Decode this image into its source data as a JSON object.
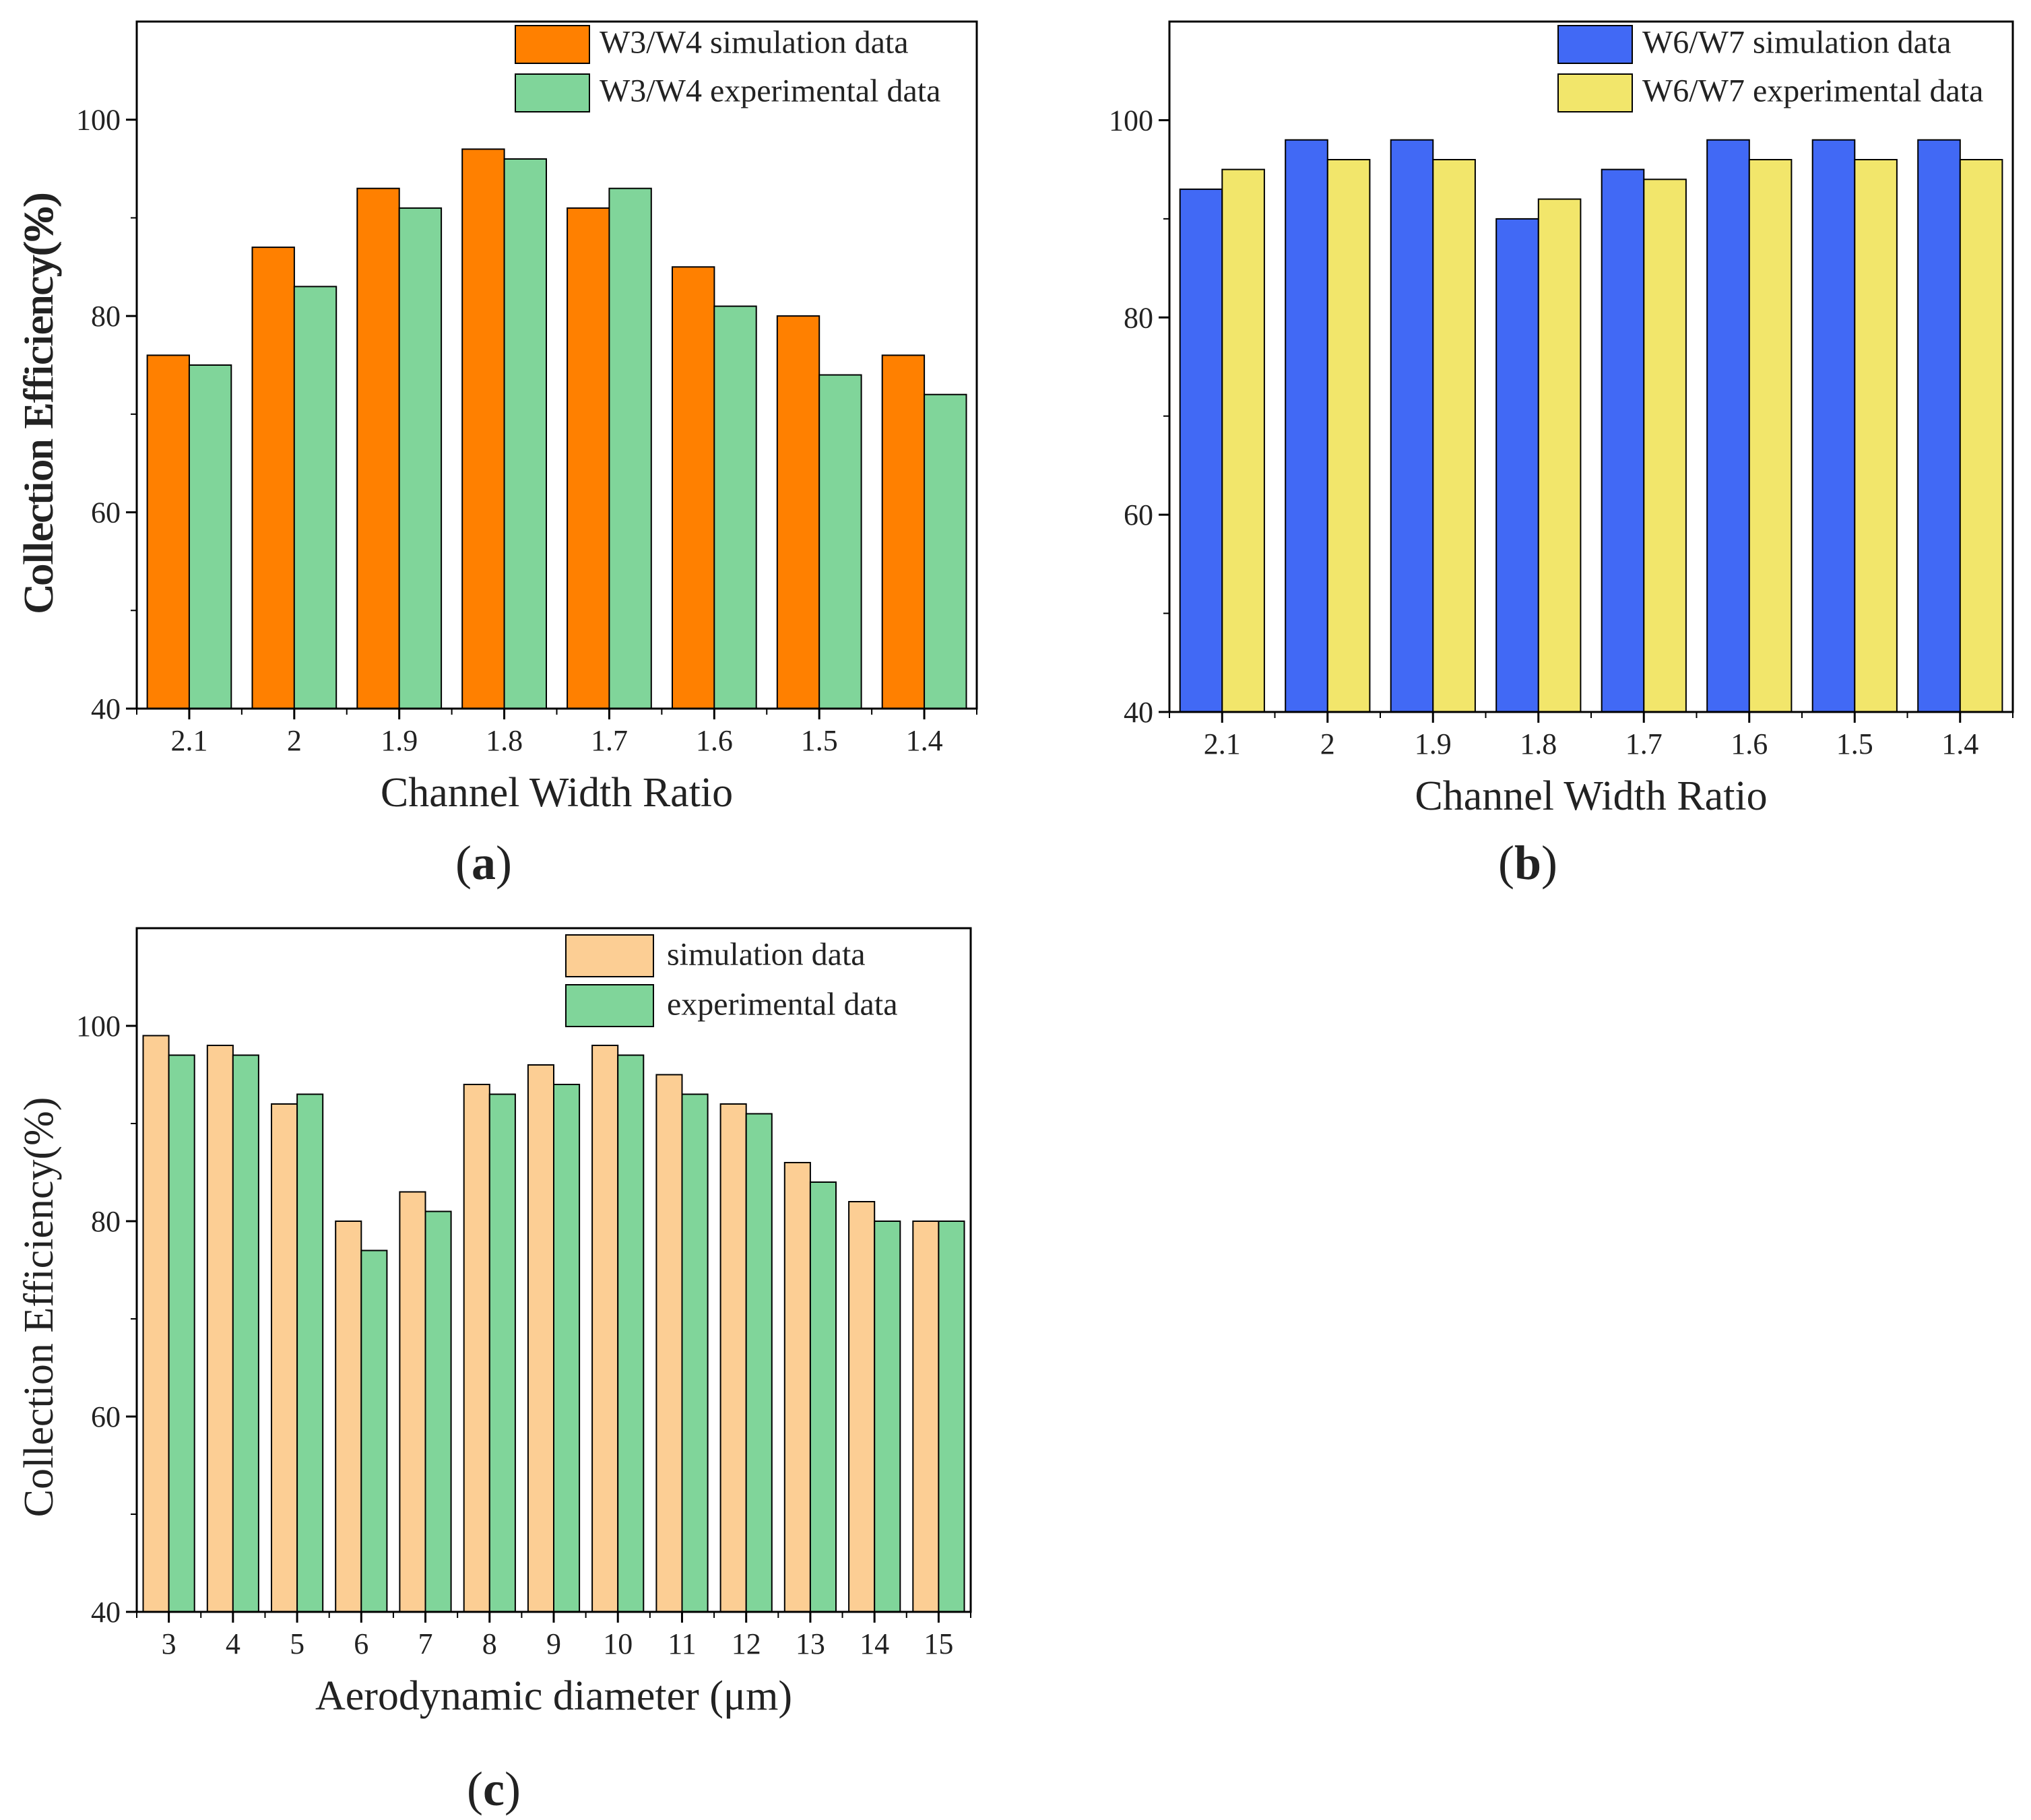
{
  "chart_data": [
    {
      "panel": "a",
      "type": "bar",
      "caption": "(a)",
      "caption_letter": "a",
      "xlabel": "Channel Width Ratio",
      "ylabel": "Collection Efficiency(%)",
      "ylim": [
        40,
        110
      ],
      "yticks": [
        40,
        60,
        80,
        100
      ],
      "categories": [
        "2.1",
        "2",
        "1.9",
        "1.8",
        "1.7",
        "1.6",
        "1.5",
        "1.4"
      ],
      "legend_position": "top-right",
      "series": [
        {
          "name": "W3/W4 simulation data",
          "color": "#ff8000",
          "values": [
            76,
            87,
            93,
            97,
            91,
            85,
            80,
            76
          ]
        },
        {
          "name": "W3/W4 experimental data",
          "color": "#80d59a",
          "values": [
            75,
            83,
            91,
            96,
            93,
            81,
            74,
            72
          ]
        }
      ]
    },
    {
      "panel": "b",
      "type": "bar",
      "caption": "(b)",
      "caption_letter": "b",
      "xlabel": "Channel Width Ratio",
      "ylabel": "Collection Efficiency(%)",
      "ylim": [
        40,
        110
      ],
      "yticks": [
        40,
        60,
        80,
        100
      ],
      "categories": [
        "2.1",
        "2",
        "1.9",
        "1.8",
        "1.7",
        "1.6",
        "1.5",
        "1.4"
      ],
      "legend_position": "top-right",
      "series": [
        {
          "name": "W6/W7 simulation data",
          "color": "#4169f5",
          "values": [
            93,
            98,
            98,
            90,
            95,
            98,
            98,
            98
          ]
        },
        {
          "name": "W6/W7 experimental data",
          "color": "#f2e66b",
          "values": [
            95,
            96,
            96,
            92,
            94,
            96,
            96,
            96
          ]
        }
      ]
    },
    {
      "panel": "c",
      "type": "bar",
      "caption": "(c)",
      "caption_letter": "c",
      "xlabel": "Aerodynamic diameter (μm)",
      "ylabel": "Collection Efficiency(%)",
      "ylim": [
        40,
        110
      ],
      "yticks": [
        40,
        60,
        80,
        100
      ],
      "categories": [
        "3",
        "4",
        "5",
        "6",
        "7",
        "8",
        "9",
        "10",
        "11",
        "12",
        "13",
        "14",
        "15"
      ],
      "legend_position": "top-right",
      "series": [
        {
          "name": "simulation data",
          "color": "#fcce94",
          "values": [
            99,
            98,
            92,
            80,
            83,
            94,
            96,
            98,
            95,
            92,
            86,
            82,
            80
          ]
        },
        {
          "name": "experimental data",
          "color": "#80d59a",
          "values": [
            97,
            97,
            93,
            77,
            81,
            93,
            94,
            97,
            93,
            91,
            84,
            80,
            80
          ]
        }
      ]
    }
  ]
}
